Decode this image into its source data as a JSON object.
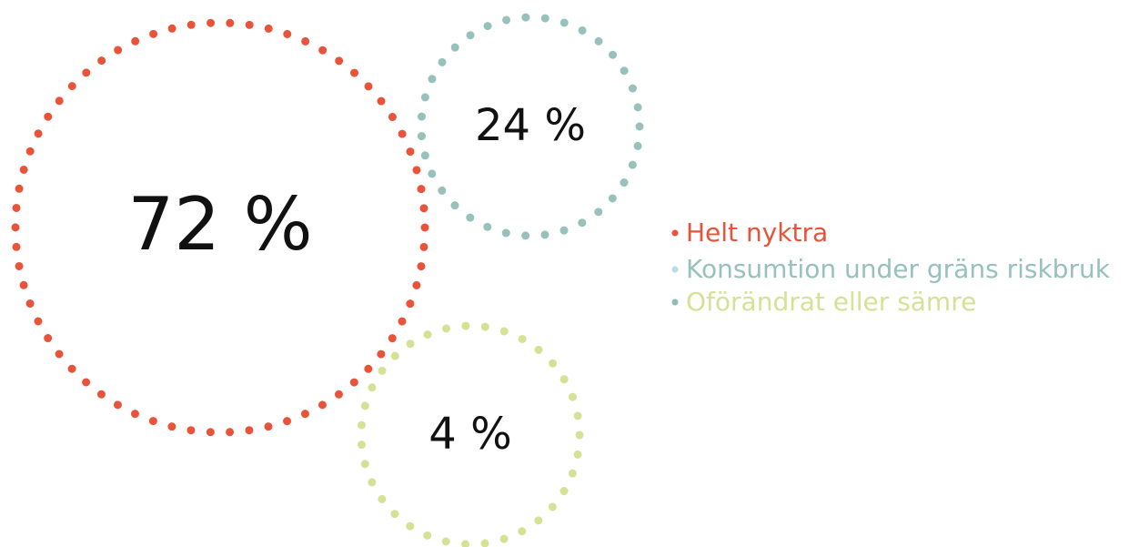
{
  "chart_data": {
    "type": "bubble",
    "categories": [
      "Helt nyktra",
      "Konsumtion under gräns riskbruk",
      "Oförändrat eller sämre"
    ],
    "values": [
      72,
      24,
      4
    ],
    "value_labels": [
      "72 %",
      "24 %",
      "4 %"
    ],
    "colors": [
      "#e8533a",
      "#97c1bb",
      "#d5e296"
    ],
    "legend_bullet_colors": [
      "#e8533a",
      "#b9dcea",
      "#8fbcb5"
    ],
    "legend": "right"
  }
}
